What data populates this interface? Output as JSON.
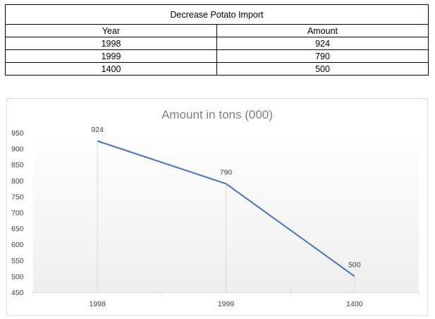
{
  "table": {
    "title": "Decrease Potato Import",
    "headers": [
      "Year",
      "Amount"
    ],
    "rows": [
      [
        "1998",
        "924"
      ],
      [
        "1999",
        "790"
      ],
      [
        "1400",
        "500"
      ]
    ]
  },
  "chart_data": {
    "type": "line",
    "title": "Amount in tons (000)",
    "categories": [
      "1998",
      "1999",
      "1400"
    ],
    "series": [
      {
        "values": [
          924,
          790,
          500
        ],
        "color": "#4472c4"
      }
    ],
    "ylim": [
      450,
      950
    ],
    "yticks": [
      950,
      900,
      850,
      800,
      750,
      700,
      650,
      600,
      550,
      500,
      450
    ],
    "data_labels": [
      "924",
      "790",
      "500"
    ],
    "grid": false,
    "drop_lines": true,
    "legend": "none"
  }
}
